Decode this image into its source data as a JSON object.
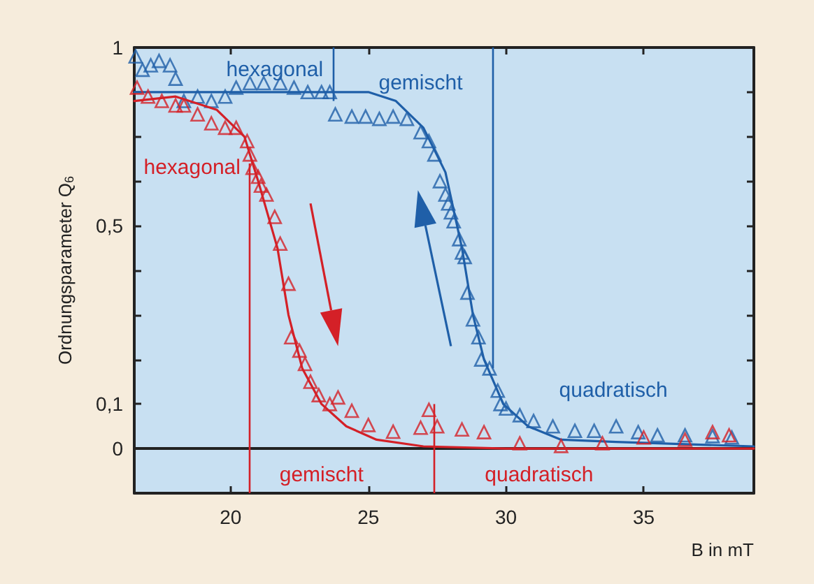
{
  "chart_data": {
    "type": "scatter",
    "xlabel": "B in mT",
    "ylabel": "Ordnungsparameter Q$_{6}$",
    "xlim": [
      16.5,
      39
    ],
    "xticks": [
      20,
      25,
      30,
      35
    ],
    "ylim": [
      -0.1,
      0.9
    ],
    "yticks": [
      0,
      {
        "value": 0.1,
        "label": "0,1"
      },
      {
        "value": 0.2,
        "label": null
      },
      {
        "value": 0.3,
        "label": null
      },
      {
        "value": 0.4,
        "label": null
      },
      {
        "value": 0.5,
        "label": "0,5"
      },
      {
        "value": 0.6,
        "label": null
      },
      {
        "value": 0.7,
        "label": null
      },
      {
        "value": 0.8,
        "label": null
      },
      {
        "value": 0.9,
        "label": "1"
      }
    ],
    "grid": false,
    "series": [
      {
        "marker": "triangle",
        "color": "#1f5fa8",
        "x": [
          16.55,
          16.8,
          17.1,
          17.4,
          17.8,
          18.0,
          18.3,
          18.8,
          19.3,
          19.8,
          20.2,
          20.7,
          21.2,
          21.8,
          22.3,
          22.8,
          23.3,
          23.6,
          23.8,
          24.4,
          24.9,
          25.4,
          25.9,
          26.4,
          26.9,
          27.2,
          27.4,
          27.6,
          27.8,
          27.9,
          28.0,
          28.1,
          28.3,
          28.4,
          28.5,
          28.6,
          28.8,
          29.0,
          29.1,
          29.4,
          29.7,
          29.8,
          30.0,
          30.5,
          31.0,
          31.7,
          32.5,
          33.2,
          34.0,
          34.8,
          35.5,
          36.5,
          37.5,
          38.2
        ],
        "values": [
          0.88,
          0.85,
          0.86,
          0.87,
          0.86,
          0.83,
          0.78,
          0.79,
          0.78,
          0.79,
          0.81,
          0.82,
          0.82,
          0.82,
          0.81,
          0.8,
          0.8,
          0.8,
          0.75,
          0.745,
          0.745,
          0.74,
          0.745,
          0.74,
          0.71,
          0.69,
          0.66,
          0.6,
          0.57,
          0.55,
          0.53,
          0.51,
          0.47,
          0.44,
          0.43,
          0.35,
          0.29,
          0.25,
          0.2,
          0.18,
          0.13,
          0.1,
          0.09,
          0.075,
          0.062,
          0.05,
          0.04,
          0.04,
          0.05,
          0.037,
          0.03,
          0.03,
          0.028,
          0.025
        ]
      },
      {
        "type": "line",
        "marker": "none",
        "color": "#1f5fa8",
        "x": [
          16.5,
          20,
          25,
          26,
          27,
          27.8,
          28.4,
          28.8,
          29.2,
          29.9,
          30.8,
          32,
          34,
          39
        ],
        "values": [
          0.8,
          0.8,
          0.8,
          0.78,
          0.72,
          0.62,
          0.45,
          0.3,
          0.2,
          0.1,
          0.05,
          0.02,
          0.015,
          0.005
        ]
      },
      {
        "marker": "triangle",
        "color": "#d42027",
        "x": [
          16.6,
          17.0,
          17.5,
          18.0,
          18.3,
          18.8,
          19.3,
          19.8,
          20.2,
          20.6,
          20.7,
          20.8,
          21.0,
          21.1,
          21.3,
          21.6,
          21.8,
          22.1,
          22.2,
          22.5,
          22.7,
          22.9,
          23.2,
          23.6,
          23.9,
          24.4,
          25.0,
          25.9,
          26.9,
          27.2,
          27.5,
          28.4,
          29.2,
          30.5,
          32.0,
          33.5,
          35.0,
          36.5,
          37.5,
          38.1
        ],
        "values": [
          0.81,
          0.79,
          0.78,
          0.77,
          0.77,
          0.75,
          0.73,
          0.72,
          0.72,
          0.69,
          0.66,
          0.63,
          0.61,
          0.59,
          0.57,
          0.52,
          0.46,
          0.37,
          0.25,
          0.22,
          0.19,
          0.15,
          0.12,
          0.1,
          0.115,
          0.085,
          0.053,
          0.038,
          0.047,
          0.087,
          0.05,
          0.043,
          0.037,
          0.012,
          0.006,
          0.012,
          0.025,
          0.02,
          0.037,
          0.03
        ]
      },
      {
        "type": "line",
        "marker": "none",
        "color": "#d42027",
        "x": [
          16.5,
          18,
          19.5,
          20.5,
          21.0,
          21.7,
          22.1,
          22.6,
          23.3,
          24.2,
          25.3,
          27,
          30,
          39
        ],
        "values": [
          0.78,
          0.79,
          0.76,
          0.7,
          0.6,
          0.45,
          0.3,
          0.18,
          0.1,
          0.05,
          0.02,
          0.005,
          0,
          0
        ]
      }
    ],
    "ref_lines": [
      {
        "axis": "y",
        "value": 0,
        "color": "#222222"
      },
      {
        "axis": "x",
        "value": 23.7,
        "color": "#1f5fa8"
      },
      {
        "axis": "x",
        "value": 29.5,
        "color": "#1f5fa8"
      },
      {
        "axis": "x",
        "value": 20.7,
        "color": "#d42027"
      },
      {
        "axis": "x",
        "value": 27.4,
        "color": "#d42027"
      }
    ],
    "annotations": [
      "hexagonal",
      "gemischt",
      "quadratisch",
      "hexagonal",
      "gemischt",
      "quadratisch"
    ]
  }
}
